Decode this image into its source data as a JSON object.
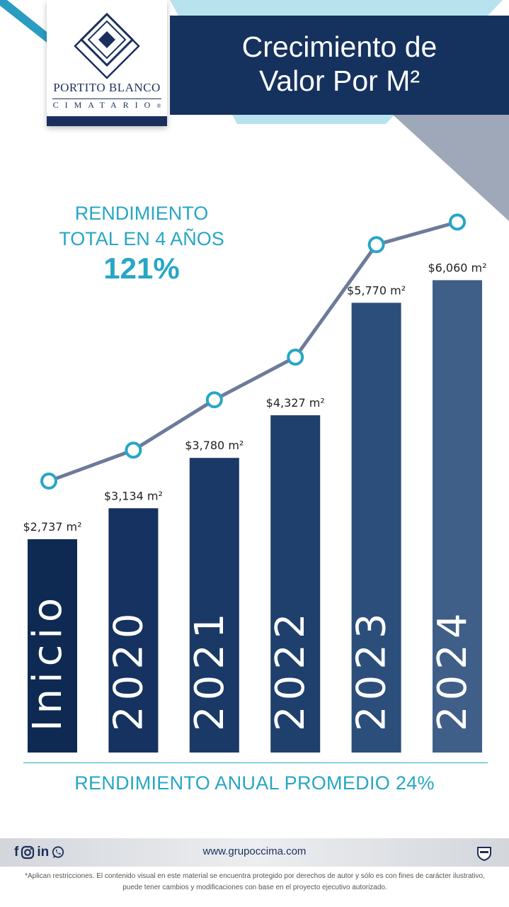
{
  "brand": {
    "name": "PORTITO BLANCO",
    "sub": "CIMATARIO",
    "registered": "®"
  },
  "title": {
    "line1": "Crecimiento de",
    "line2": "Valor Por M²"
  },
  "summary": {
    "line1": "RENDIMIENTO",
    "line2": "TOTAL EN 4 AÑOS",
    "percent": "121%"
  },
  "chart_data": {
    "type": "bar",
    "categories": [
      "Inicio",
      "2020",
      "2021",
      "2022",
      "2023",
      "2024"
    ],
    "values": [
      2737,
      3134,
      3780,
      4327,
      5770,
      6060
    ],
    "data_labels": [
      "$2,737 m²",
      "$3,134 m²",
      "$3,780 m²",
      "$4,327 m²",
      "$5,770 m²",
      "$6,060 m²"
    ],
    "line_overlay": true,
    "colors": {
      "bars": [
        "#0e2a52",
        "#153260",
        "#1a3966",
        "#1f406c",
        "#2c4e7b",
        "#3f5f89"
      ],
      "line": "#6d7b9a",
      "markers": "#27a6c6"
    }
  },
  "footer": {
    "annual": "RENDIMIENTO ANUAL PROMEDIO 24%",
    "social_icons": [
      "facebook-icon",
      "instagram-icon",
      "linkedin-icon",
      "whatsapp-icon"
    ],
    "website": "www.grupoccima.com",
    "disclaimer": "*Aplican restricciones. El contenido visual en este material se encuentra protegido por derechos de autor y sólo es con fines de carácter ilustrativo, puede tener cambios y modificaciones con base en el proyecto ejecutivo autorizado."
  }
}
